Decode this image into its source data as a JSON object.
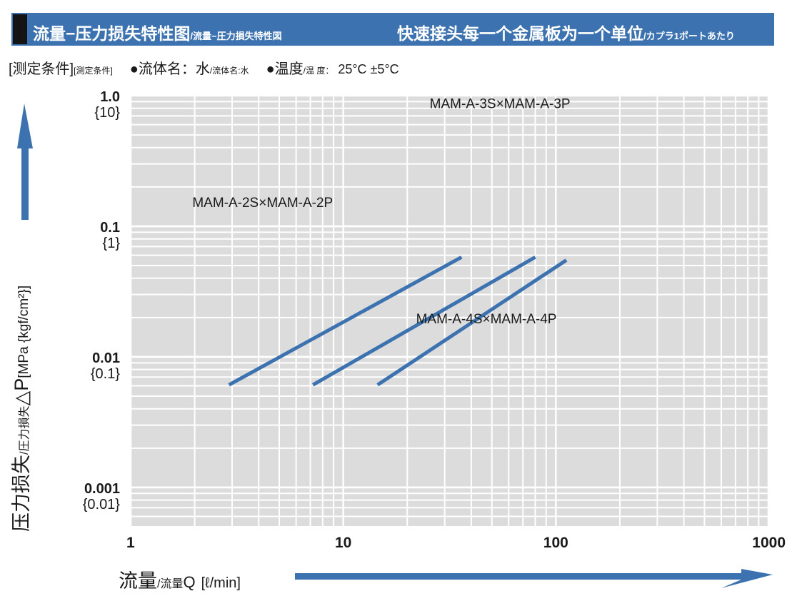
{
  "header": {
    "title_main": "流量−压力损失特性图",
    "title_sub": "/流量−圧力損失特性図",
    "right_main": "快速接头每一个金属板为一个单位",
    "right_sub": "/カプラ1ポートあたり"
  },
  "conditions": {
    "label_main": "[测定条件]",
    "label_sub": "[測定条件]",
    "fluid_main": "●流体名：水",
    "fluid_sub": "/流体名:水",
    "temp_main": "●温度",
    "temp_sub": "/温 度：",
    "temp_value": "25°C ±5°C"
  },
  "axes": {
    "y_title_main": "压力损失",
    "y_title_sub": "/圧力損失",
    "y_title_symbol": "△P",
    "y_title_unit": "[MPa {kgf/cm²}]",
    "x_title_main": "流量",
    "x_title_sub": "/流量",
    "x_title_symbol": "Q",
    "x_title_unit": "[ℓ/min]"
  },
  "chart_data": {
    "type": "line",
    "x_scale": "log",
    "y_scale": "log",
    "xlim": [
      1,
      1000
    ],
    "ylim": [
      0.0005,
      1.0
    ],
    "grid": true,
    "x_ticks": [
      {
        "value": 1,
        "label": "1"
      },
      {
        "value": 10,
        "label": "10"
      },
      {
        "value": 100,
        "label": "100"
      },
      {
        "value": 1000,
        "label": "1000"
      }
    ],
    "y_ticks": [
      {
        "value": 1.0,
        "label": "1.0",
        "label2": "{10}"
      },
      {
        "value": 0.1,
        "label": "0.1",
        "label2": "{1}"
      },
      {
        "value": 0.01,
        "label": "0.01",
        "label2": "{0.1}"
      },
      {
        "value": 0.001,
        "label": "0.001",
        "label2": "{0.01}"
      }
    ],
    "series": [
      {
        "name": "MAM-A-2S×MAM-A-2P",
        "x": [
          2.9,
          36
        ],
        "y": [
          0.0061,
          0.058
        ],
        "label_x": 1.95,
        "label_y": 0.14
      },
      {
        "name": "MAM-A-3S×MAM-A-3P",
        "x": [
          7.2,
          80
        ],
        "y": [
          0.0061,
          0.058
        ],
        "label_x": 25.5,
        "label_y": 0.8
      },
      {
        "name": "MAM-A-4S×MAM-A-4P",
        "x": [
          14.5,
          112
        ],
        "y": [
          0.0061,
          0.055
        ],
        "label_x": 22,
        "label_y": 0.018
      }
    ],
    "colors": {
      "line": "#3c72b0",
      "background": "#dcdcdc",
      "grid": "#ffffff",
      "arrow": "#3c72b0"
    }
  }
}
